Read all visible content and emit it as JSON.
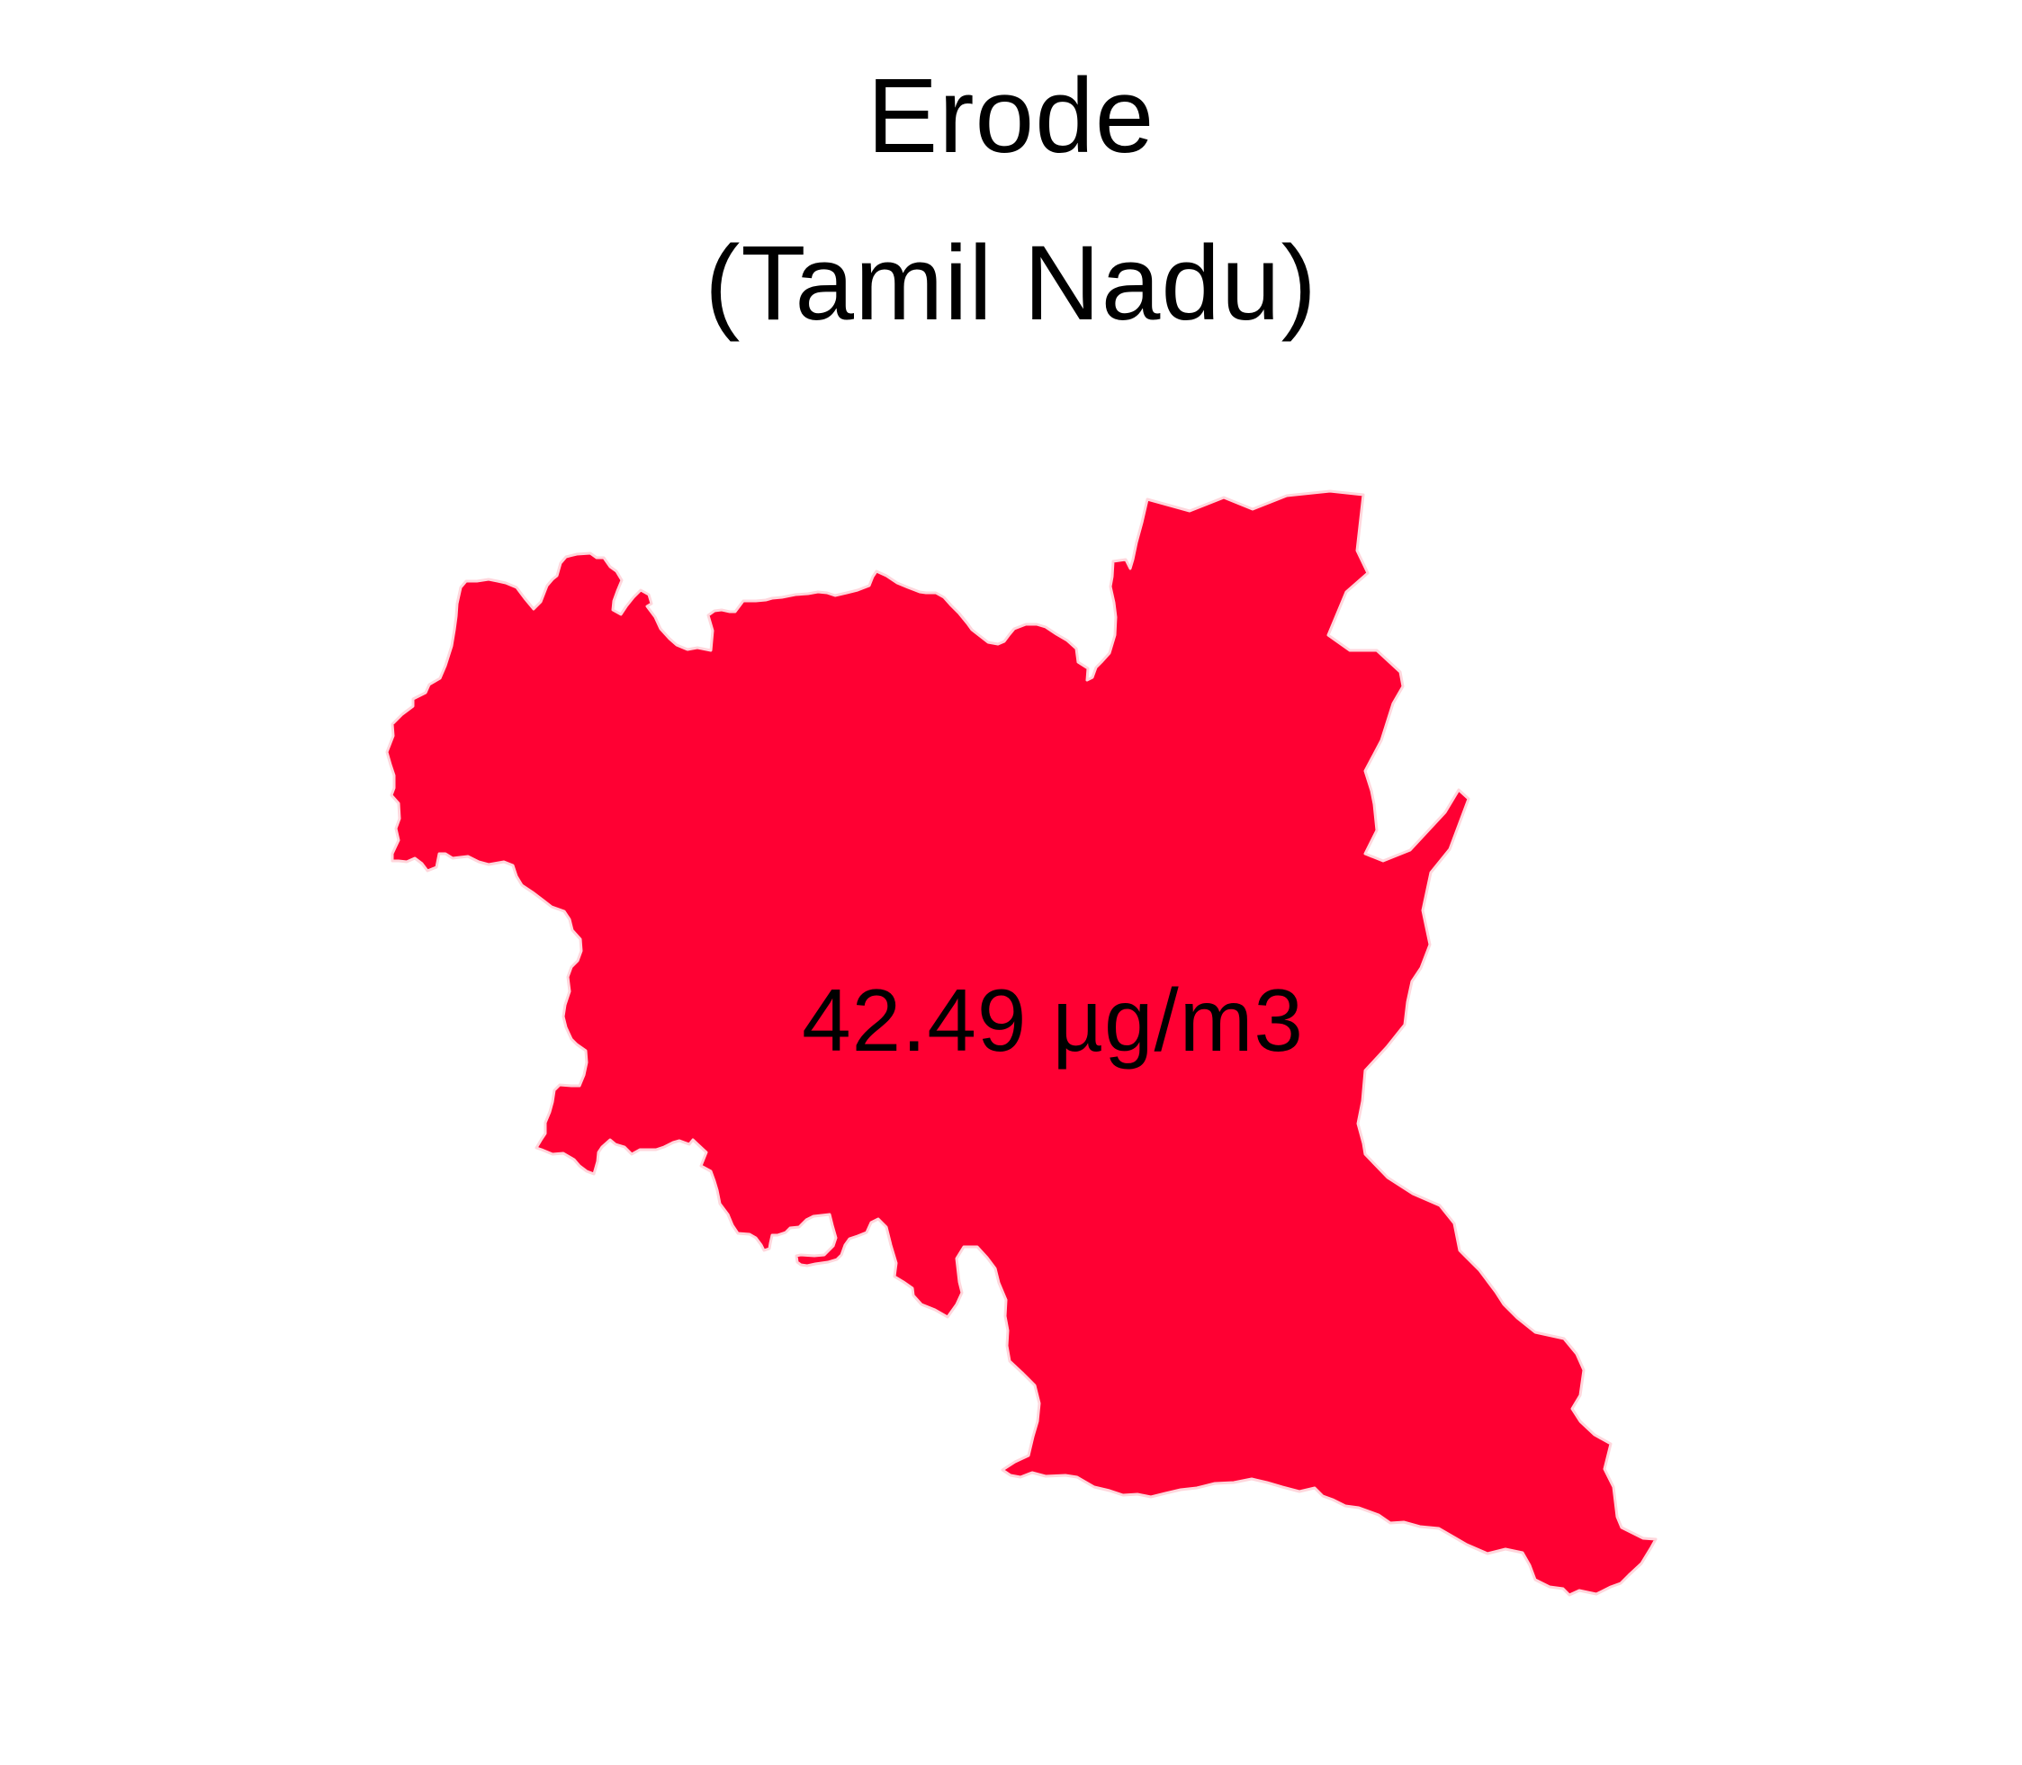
{
  "title": {
    "district": "Erode",
    "state": "(Tamil Nadu)"
  },
  "map": {
    "region_name": "Erode",
    "value_label": "42.49 µg/m3",
    "fill_color": "#ff0033",
    "stroke_color": "#ffd6dc",
    "background_color": "#ffffff"
  }
}
